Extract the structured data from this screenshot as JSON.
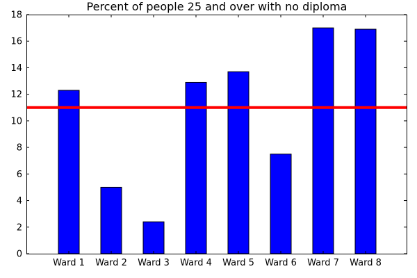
{
  "chart_data": {
    "type": "bar",
    "title": "Percent of people 25 and over with no diploma",
    "xlabel": "",
    "ylabel": "",
    "categories": [
      "Ward 1",
      "Ward 2",
      "Ward 3",
      "Ward 4",
      "Ward 5",
      "Ward 6",
      "Ward 7",
      "Ward 8"
    ],
    "values": [
      12.3,
      5.0,
      2.4,
      12.9,
      13.7,
      7.5,
      17.0,
      16.9
    ],
    "ylim": [
      0,
      18
    ],
    "yticks": [
      0,
      2,
      4,
      6,
      8,
      10,
      12,
      14,
      16,
      18
    ],
    "bar_color": "#0000ff",
    "reference_line": {
      "value": 11.0,
      "color": "#ff0000"
    },
    "grid": false,
    "legend": "none"
  }
}
